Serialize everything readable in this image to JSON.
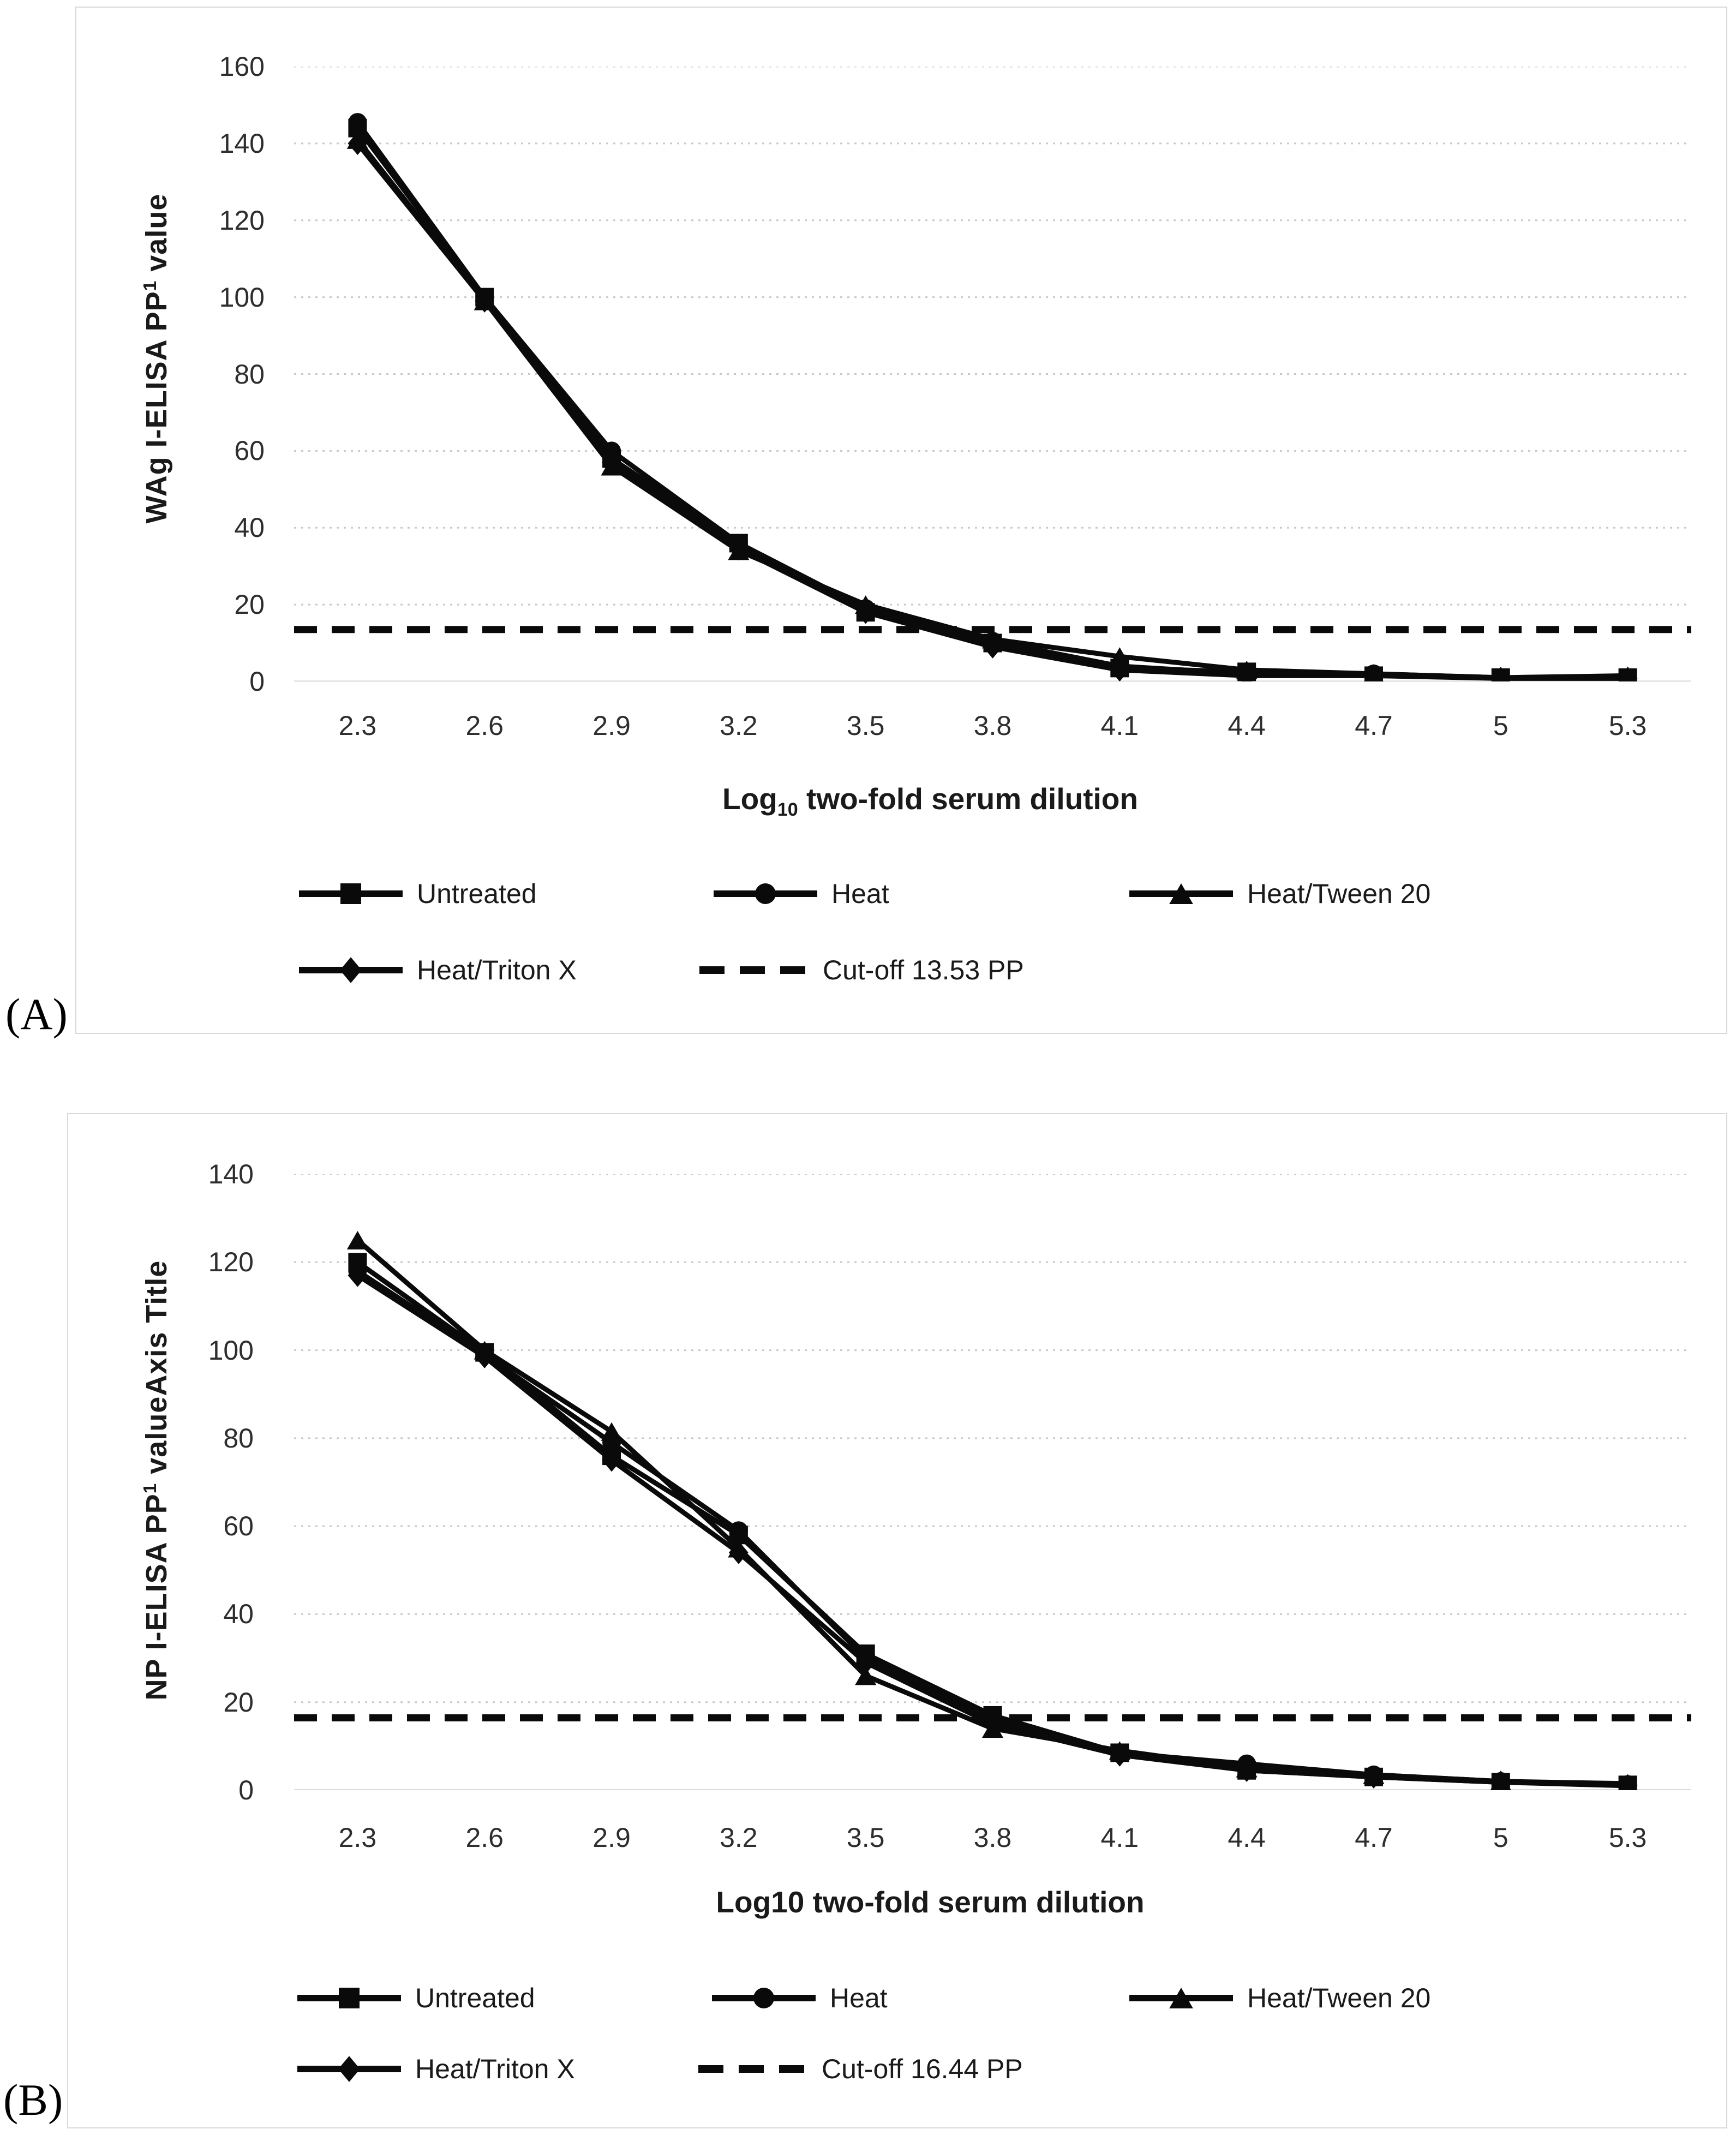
{
  "page": {
    "background": "#ffffff",
    "line_color": "#0a0a0a",
    "grid_color": "#c9c9c9",
    "text_color": "#1a1a1a"
  },
  "panels": [
    {
      "label": "(A)"
    },
    {
      "label": "(B)"
    }
  ],
  "chart_data": [
    {
      "type": "line",
      "panel_label": "(A)",
      "y_title": {
        "prefix": "WAg I-ELISA PP",
        "sup": "1",
        "suffix": " value"
      },
      "x_title": {
        "prefix": "Log",
        "sub": "10",
        "suffix": " two-fold serum dilution"
      },
      "categories": [
        "2.3",
        "2.6",
        "2.9",
        "3.2",
        "3.5",
        "3.8",
        "4.1",
        "4.4",
        "4.7",
        "5",
        "5.3"
      ],
      "y_ticks": [
        160,
        140,
        120,
        100,
        80,
        60,
        40,
        20,
        0
      ],
      "ylim": [
        0,
        160
      ],
      "grid": "horizontal-dotted",
      "legend_position": "bottom",
      "series": [
        {
          "name": "Untreated",
          "marker": "square",
          "values": [
            144,
            100,
            58,
            36,
            18,
            10,
            3.5,
            2.5,
            1.5,
            1,
            1
          ]
        },
        {
          "name": "Heat",
          "marker": "circle",
          "values": [
            145.5,
            100,
            60,
            36,
            19,
            10.5,
            4,
            2,
            2,
            1,
            1
          ]
        },
        {
          "name": "Heat/Tween 20",
          "marker": "triangle",
          "values": [
            141,
            99,
            56,
            34,
            20,
            11,
            6.5,
            3,
            2,
            1,
            1.5
          ]
        },
        {
          "name": "Heat/Triton X",
          "marker": "diamond",
          "values": [
            140,
            99,
            57,
            34.5,
            18,
            9,
            3,
            1.5,
            1.5,
            0.8,
            0.8
          ]
        }
      ],
      "cutoff": {
        "label": "Cut-off 13.53 PP",
        "value": 13.53
      }
    },
    {
      "type": "line",
      "panel_label": "(B)",
      "y_title": {
        "prefix": "NP I-ELISA PP",
        "sup": "1",
        "suffix": " valueAxis Title"
      },
      "x_title": {
        "prefix": "Log10 two-fold serum dilution",
        "sub": "",
        "suffix": ""
      },
      "categories": [
        "2.3",
        "2.6",
        "2.9",
        "3.2",
        "3.5",
        "3.8",
        "4.1",
        "4.4",
        "4.7",
        "5",
        "5.3"
      ],
      "y_ticks": [
        140,
        120,
        100,
        80,
        60,
        40,
        20,
        0
      ],
      "ylim": [
        0,
        140
      ],
      "grid": "horizontal-dotted",
      "legend_position": "bottom",
      "series": [
        {
          "name": "Untreated",
          "marker": "square",
          "values": [
            120,
            99.5,
            76,
            58,
            31,
            17,
            8.5,
            4.5,
            3,
            1.8,
            1.2
          ]
        },
        {
          "name": "Heat",
          "marker": "circle",
          "values": [
            118,
            99,
            79,
            59,
            30,
            16,
            8.5,
            6,
            3.5,
            2,
            1.3
          ]
        },
        {
          "name": "Heat/Tween 20",
          "marker": "triangle",
          "values": [
            125,
            100,
            81.5,
            55,
            26,
            14,
            9,
            5,
            3.5,
            2,
            1.5
          ]
        },
        {
          "name": "Heat/Triton X",
          "marker": "diamond",
          "values": [
            117,
            98.5,
            75,
            54,
            29,
            15,
            8,
            4.5,
            3,
            1.8,
            1
          ]
        }
      ],
      "cutoff": {
        "label": "Cut-off 16.44 PP",
        "value": 16.44
      }
    }
  ]
}
